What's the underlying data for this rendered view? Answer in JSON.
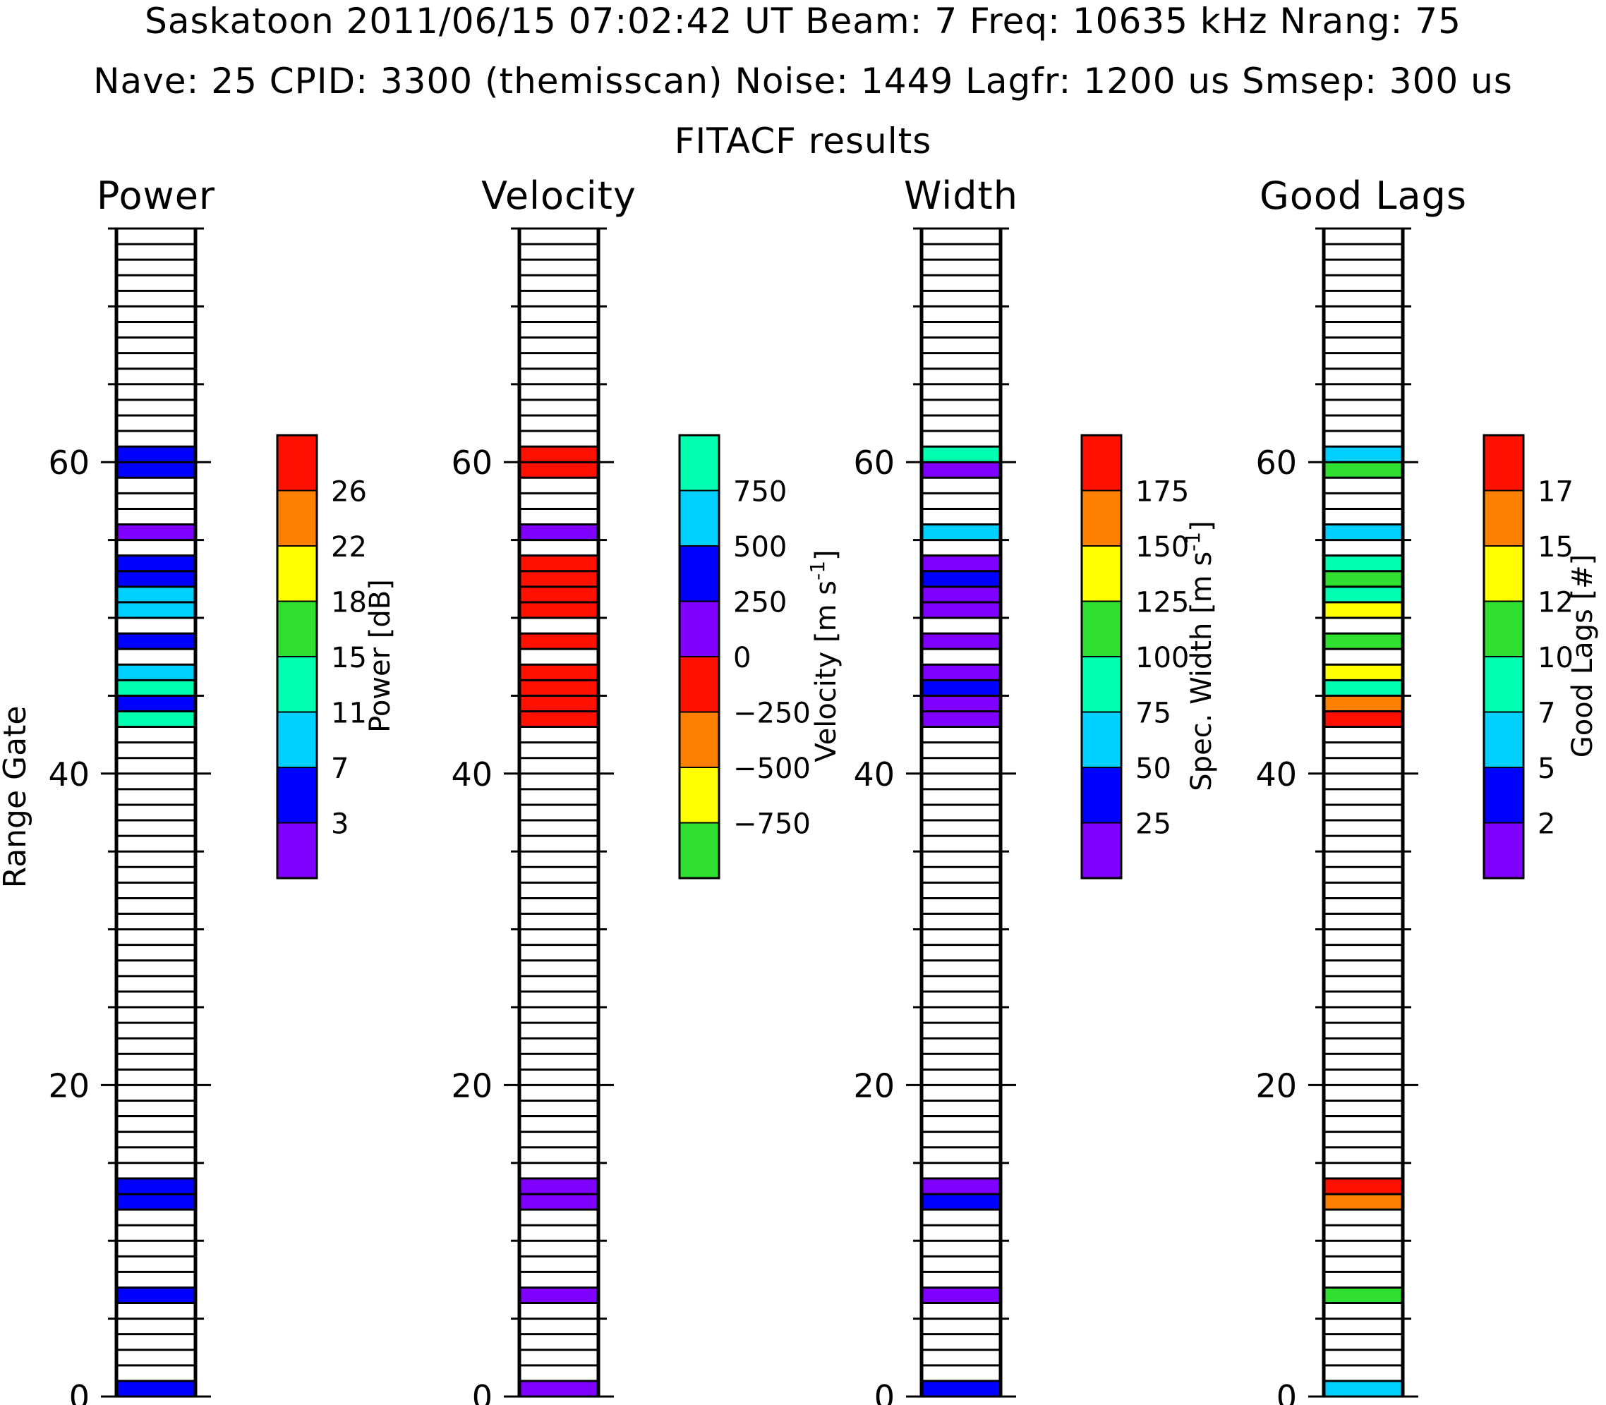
{
  "header": {
    "line1": "Saskatoon   2011/06/15   07:02:42 UT   Beam: 7   Freq: 10635 kHz   Nrang: 75",
    "line2": "Nave: 25   CPID: 3300 (themisscan)   Noise: 1449   Lagfr: 1200 us   Smsep: 300 us",
    "line3": "FITACF results"
  },
  "ylabel": "Range Gate",
  "colors": [
    "#8000ff",
    "#0000ff",
    "#00d0ff",
    "#00ffb0",
    "#30e030",
    "#ffff00",
    "#ff8000",
    "#ff1000"
  ],
  "velocity_colors": [
    "#30e030",
    "#ffff00",
    "#ff8000",
    "#ff1000",
    "#8000ff",
    "#0000ff",
    "#00d0ff",
    "#00ffb0"
  ],
  "chart_data": [
    {
      "type": "heatmap",
      "title": "Power",
      "xlabel": "",
      "ylabel": "Range Gate",
      "ylim": [
        0,
        75
      ],
      "yticks": [
        "0",
        "20",
        "40",
        "60"
      ],
      "colorbar": {
        "label": "Power [dB]",
        "ticks": [
          "3",
          "7",
          "11",
          "15",
          "18",
          "22",
          "26"
        ]
      },
      "cells": [
        {
          "gate": 0,
          "color": "#0000ff"
        },
        {
          "gate": 6,
          "color": "#0000ff"
        },
        {
          "gate": 12,
          "color": "#0000ff"
        },
        {
          "gate": 13,
          "color": "#0000ff"
        },
        {
          "gate": 43,
          "color": "#00ffb0"
        },
        {
          "gate": 44,
          "color": "#0000ff"
        },
        {
          "gate": 45,
          "color": "#00ffb0"
        },
        {
          "gate": 46,
          "color": "#00d0ff"
        },
        {
          "gate": 48,
          "color": "#0000ff"
        },
        {
          "gate": 50,
          "color": "#00d0ff"
        },
        {
          "gate": 51,
          "color": "#00d0ff"
        },
        {
          "gate": 52,
          "color": "#0000ff"
        },
        {
          "gate": 53,
          "color": "#0000ff"
        },
        {
          "gate": 55,
          "color": "#8000ff"
        },
        {
          "gate": 59,
          "color": "#0000ff"
        },
        {
          "gate": 60,
          "color": "#0000ff"
        }
      ]
    },
    {
      "type": "heatmap",
      "title": "Velocity",
      "xlabel": "",
      "ylabel": "",
      "ylim": [
        0,
        75
      ],
      "yticks": [
        "0",
        "20",
        "40",
        "60"
      ],
      "colorbar": {
        "label": "Velocity [m s-1]",
        "ticks": [
          "−750",
          "−500",
          "−250",
          "0",
          "250",
          "500",
          "750"
        ]
      },
      "cells": [
        {
          "gate": 0,
          "color": "#8000ff"
        },
        {
          "gate": 6,
          "color": "#8000ff"
        },
        {
          "gate": 12,
          "color": "#8000ff"
        },
        {
          "gate": 13,
          "color": "#8000ff"
        },
        {
          "gate": 43,
          "color": "#ff1000"
        },
        {
          "gate": 44,
          "color": "#ff1000"
        },
        {
          "gate": 45,
          "color": "#ff1000"
        },
        {
          "gate": 46,
          "color": "#ff1000"
        },
        {
          "gate": 48,
          "color": "#ff1000"
        },
        {
          "gate": 50,
          "color": "#ff1000"
        },
        {
          "gate": 51,
          "color": "#ff1000"
        },
        {
          "gate": 52,
          "color": "#ff1000"
        },
        {
          "gate": 53,
          "color": "#ff1000"
        },
        {
          "gate": 55,
          "color": "#8000ff"
        },
        {
          "gate": 59,
          "color": "#ff1000"
        },
        {
          "gate": 60,
          "color": "#ff1000"
        }
      ]
    },
    {
      "type": "heatmap",
      "title": "Width",
      "xlabel": "",
      "ylabel": "",
      "ylim": [
        0,
        75
      ],
      "yticks": [
        "0",
        "20",
        "40",
        "60"
      ],
      "colorbar": {
        "label": "Spec. Width [m s-1]",
        "ticks": [
          "25",
          "50",
          "75",
          "100",
          "125",
          "150",
          "175"
        ]
      },
      "cells": [
        {
          "gate": 0,
          "color": "#0000ff"
        },
        {
          "gate": 6,
          "color": "#8000ff"
        },
        {
          "gate": 12,
          "color": "#0000ff"
        },
        {
          "gate": 13,
          "color": "#8000ff"
        },
        {
          "gate": 43,
          "color": "#8000ff"
        },
        {
          "gate": 44,
          "color": "#8000ff"
        },
        {
          "gate": 45,
          "color": "#0000ff"
        },
        {
          "gate": 46,
          "color": "#8000ff"
        },
        {
          "gate": 48,
          "color": "#8000ff"
        },
        {
          "gate": 50,
          "color": "#8000ff"
        },
        {
          "gate": 51,
          "color": "#8000ff"
        },
        {
          "gate": 52,
          "color": "#0000ff"
        },
        {
          "gate": 53,
          "color": "#8000ff"
        },
        {
          "gate": 55,
          "color": "#00d0ff"
        },
        {
          "gate": 59,
          "color": "#8000ff"
        },
        {
          "gate": 60,
          "color": "#00ffb0"
        }
      ]
    },
    {
      "type": "heatmap",
      "title": "Good Lags",
      "xlabel": "",
      "ylabel": "",
      "ylim": [
        0,
        75
      ],
      "yticks": [
        "0",
        "20",
        "40",
        "60"
      ],
      "colorbar": {
        "label": "Good Lags [#]",
        "ticks": [
          "2",
          "5",
          "7",
          "10",
          "12",
          "15",
          "17"
        ]
      },
      "cells": [
        {
          "gate": 0,
          "color": "#00d0ff"
        },
        {
          "gate": 6,
          "color": "#30e030"
        },
        {
          "gate": 12,
          "color": "#ff8000"
        },
        {
          "gate": 13,
          "color": "#ff1000"
        },
        {
          "gate": 43,
          "color": "#ff1000"
        },
        {
          "gate": 44,
          "color": "#ff8000"
        },
        {
          "gate": 45,
          "color": "#00ffb0"
        },
        {
          "gate": 46,
          "color": "#ffff00"
        },
        {
          "gate": 48,
          "color": "#30e030"
        },
        {
          "gate": 50,
          "color": "#ffff00"
        },
        {
          "gate": 51,
          "color": "#00ffb0"
        },
        {
          "gate": 52,
          "color": "#30e030"
        },
        {
          "gate": 53,
          "color": "#00ffb0"
        },
        {
          "gate": 55,
          "color": "#00d0ff"
        },
        {
          "gate": 59,
          "color": "#30e030"
        },
        {
          "gate": 60,
          "color": "#00d0ff"
        }
      ]
    }
  ]
}
